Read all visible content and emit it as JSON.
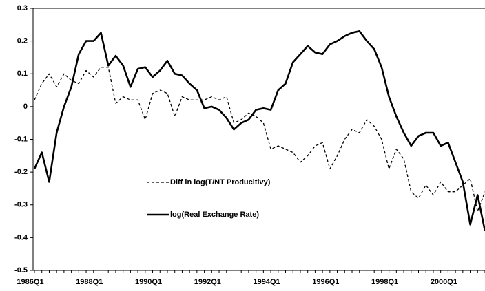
{
  "chart_data": {
    "type": "line",
    "categories": [
      "1986Q1",
      null,
      null,
      null,
      null,
      null,
      null,
      null,
      "1988Q1",
      null,
      null,
      null,
      null,
      null,
      null,
      null,
      "1990Q1",
      null,
      null,
      null,
      null,
      null,
      null,
      null,
      "1992Q1",
      null,
      null,
      null,
      null,
      null,
      null,
      null,
      "1994Q1",
      null,
      null,
      null,
      null,
      null,
      null,
      null,
      "1996Q1",
      null,
      null,
      null,
      null,
      null,
      null,
      null,
      "1998Q1",
      null,
      null,
      null,
      null,
      null,
      null,
      null,
      "2000Q1",
      null,
      null,
      null,
      null,
      null
    ],
    "series": [
      {
        "name": "Diff in log(T/NT Producitivy)",
        "color": "#000000",
        "style": "dashed",
        "values": [
          0.02,
          0.07,
          0.1,
          0.06,
          0.1,
          0.08,
          0.07,
          0.11,
          0.09,
          0.12,
          0.12,
          0.01,
          0.03,
          0.02,
          0.02,
          -0.04,
          0.04,
          0.05,
          0.04,
          -0.03,
          0.03,
          0.02,
          0.02,
          0.02,
          0.03,
          0.02,
          0.03,
          -0.05,
          -0.04,
          -0.02,
          -0.03,
          -0.05,
          -0.13,
          -0.12,
          -0.13,
          -0.14,
          -0.17,
          -0.15,
          -0.12,
          -0.11,
          -0.19,
          -0.15,
          -0.1,
          -0.07,
          -0.08,
          -0.04,
          -0.06,
          -0.1,
          -0.19,
          -0.13,
          -0.16,
          -0.26,
          -0.28,
          -0.24,
          -0.27,
          -0.23,
          -0.26,
          -0.26,
          -0.24,
          -0.22,
          -0.32,
          -0.26
        ]
      },
      {
        "name": "log(Real Exchange Rate)",
        "color": "#000000",
        "style": "solid",
        "values": [
          -0.19,
          -0.14,
          -0.23,
          -0.08,
          0.0,
          0.06,
          0.16,
          0.2,
          0.2,
          0.225,
          0.125,
          0.155,
          0.125,
          0.06,
          0.115,
          0.12,
          0.09,
          0.11,
          0.14,
          0.1,
          0.095,
          0.07,
          0.05,
          -0.005,
          0.0,
          -0.01,
          -0.035,
          -0.07,
          -0.05,
          -0.04,
          -0.01,
          -0.005,
          -0.01,
          0.05,
          0.07,
          0.135,
          0.16,
          0.185,
          0.165,
          0.16,
          0.19,
          0.2,
          0.215,
          0.225,
          0.23,
          0.2,
          0.175,
          0.12,
          0.03,
          -0.03,
          -0.08,
          -0.12,
          -0.09,
          -0.08,
          -0.08,
          -0.12,
          -0.11,
          -0.17,
          -0.23,
          -0.36,
          -0.27,
          -0.38
        ]
      }
    ],
    "ylim": [
      -0.5,
      0.3
    ],
    "yticks": [
      0.3,
      0.2,
      0.1,
      0,
      -0.1,
      -0.2,
      -0.3,
      -0.4,
      -0.5
    ],
    "legend": "inside-center-left"
  }
}
